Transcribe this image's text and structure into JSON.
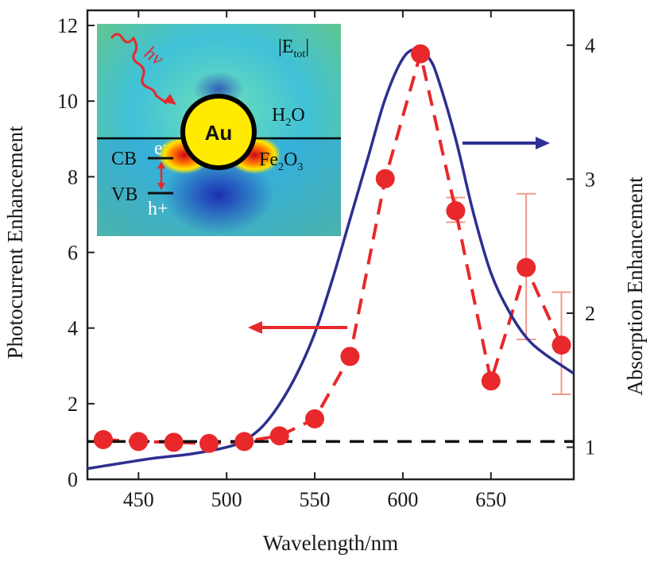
{
  "chart_data": {
    "type": "line",
    "xlabel": "Wavelength/nm",
    "ylabel_left": "Photocurrent Enhancement",
    "ylabel_right": "Absorption Enhancement",
    "xlim": [
      421,
      697
    ],
    "ylim_left": [
      0,
      12.4
    ],
    "ylim_right": [
      0.76,
      4.26
    ],
    "x_ticks": [
      450,
      500,
      550,
      600,
      650
    ],
    "y_left_ticks": [
      0,
      2,
      4,
      6,
      8,
      10,
      12
    ],
    "y_right_ticks": [
      1,
      2,
      3,
      4
    ],
    "grid": false,
    "series": [
      {
        "axis": "left",
        "style": "dashed line with circle markers",
        "color": "#e8282b",
        "x": [
          430,
          450,
          470,
          490,
          510,
          530,
          550,
          570,
          590,
          610,
          630,
          650,
          670,
          690
        ],
        "values": [
          1.05,
          1.0,
          0.98,
          0.95,
          1.0,
          1.15,
          1.6,
          3.25,
          7.95,
          11.25,
          7.1,
          2.6,
          5.6,
          3.55
        ],
        "error_bars": [
          {
            "x": 630,
            "low": 6.8,
            "high": 7.45
          },
          {
            "x": 670,
            "low": 3.7,
            "high": 7.55
          },
          {
            "x": 690,
            "low": 2.25,
            "high": 4.95
          }
        ]
      },
      {
        "axis": "right",
        "style": "solid line",
        "color": "#2e2f8f",
        "x": [
          421,
          440,
          460,
          480,
          500,
          510,
          520,
          530,
          540,
          550,
          560,
          570,
          580,
          590,
          600,
          608,
          615,
          620,
          630,
          640,
          650,
          660,
          670,
          680,
          697
        ],
        "values": [
          0.84,
          0.88,
          0.92,
          0.95,
          1.0,
          1.05,
          1.15,
          1.32,
          1.55,
          1.85,
          2.25,
          2.7,
          3.15,
          3.6,
          3.9,
          3.97,
          3.9,
          3.75,
          3.3,
          2.75,
          2.3,
          2.02,
          1.82,
          1.7,
          1.55
        ]
      },
      {
        "axis": "left",
        "style": "dashed reference line",
        "color": "#111111",
        "x": [
          421,
          697
        ],
        "values": [
          1.0,
          1.0
        ]
      }
    ],
    "annotations": {
      "left_arrow": {
        "color": "#e8282b",
        "points_to": "left"
      },
      "right_arrow": {
        "color": "#2e3094",
        "points_to": "right"
      }
    }
  },
  "inset": {
    "energy": "hν",
    "field": "|E",
    "field_sub": "tot",
    "field_close": "|",
    "particle": "Au",
    "medium_top": "H",
    "medium_top_sub": "2",
    "medium_top_end": "O",
    "substrate": "Fe",
    "substrate_sub1": "2",
    "substrate_mid": "O",
    "substrate_sub2": "3",
    "cb": "CB",
    "vb": "VB",
    "electron": "e",
    "electron_sup": "-",
    "hole": "h+"
  }
}
